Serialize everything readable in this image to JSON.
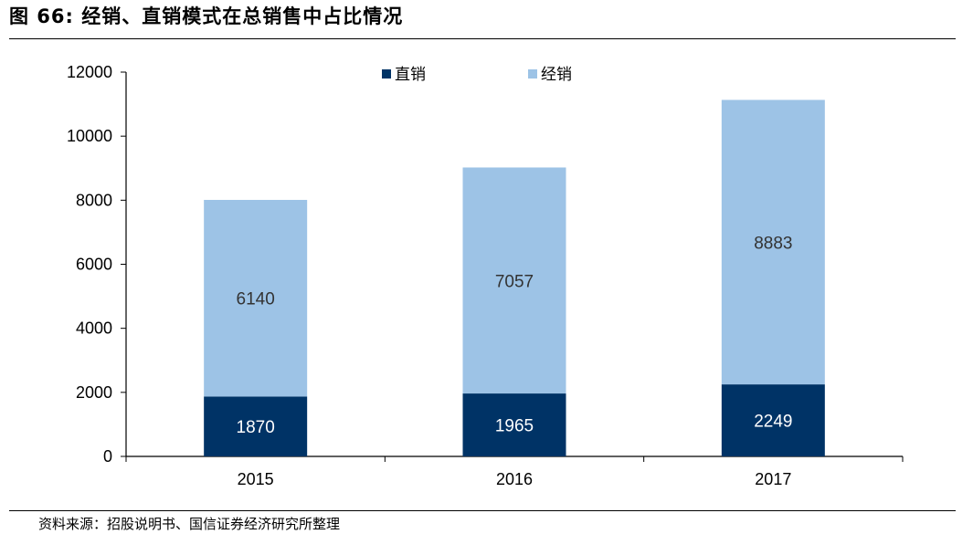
{
  "figure": {
    "title": "图 66: 经销、直销模式在总销售中占比情况",
    "source": "资料来源：招股说明书、国信证券经济研究所整理"
  },
  "chart_data": {
    "type": "bar",
    "stacked": true,
    "categories": [
      "2015",
      "2016",
      "2017"
    ],
    "series": [
      {
        "name": "直销",
        "values": [
          1870,
          1965,
          2249
        ],
        "color": "#003366"
      },
      {
        "name": "经销",
        "values": [
          6140,
          7057,
          8883
        ],
        "color": "#9DC3E6"
      }
    ],
    "ylim": [
      0,
      12000
    ],
    "yticks": [
      0,
      2000,
      4000,
      6000,
      8000,
      10000,
      12000
    ],
    "grid": false,
    "legend": "top-center",
    "label_colors": {
      "直销": "#ffffff",
      "经销": "#333333"
    }
  }
}
